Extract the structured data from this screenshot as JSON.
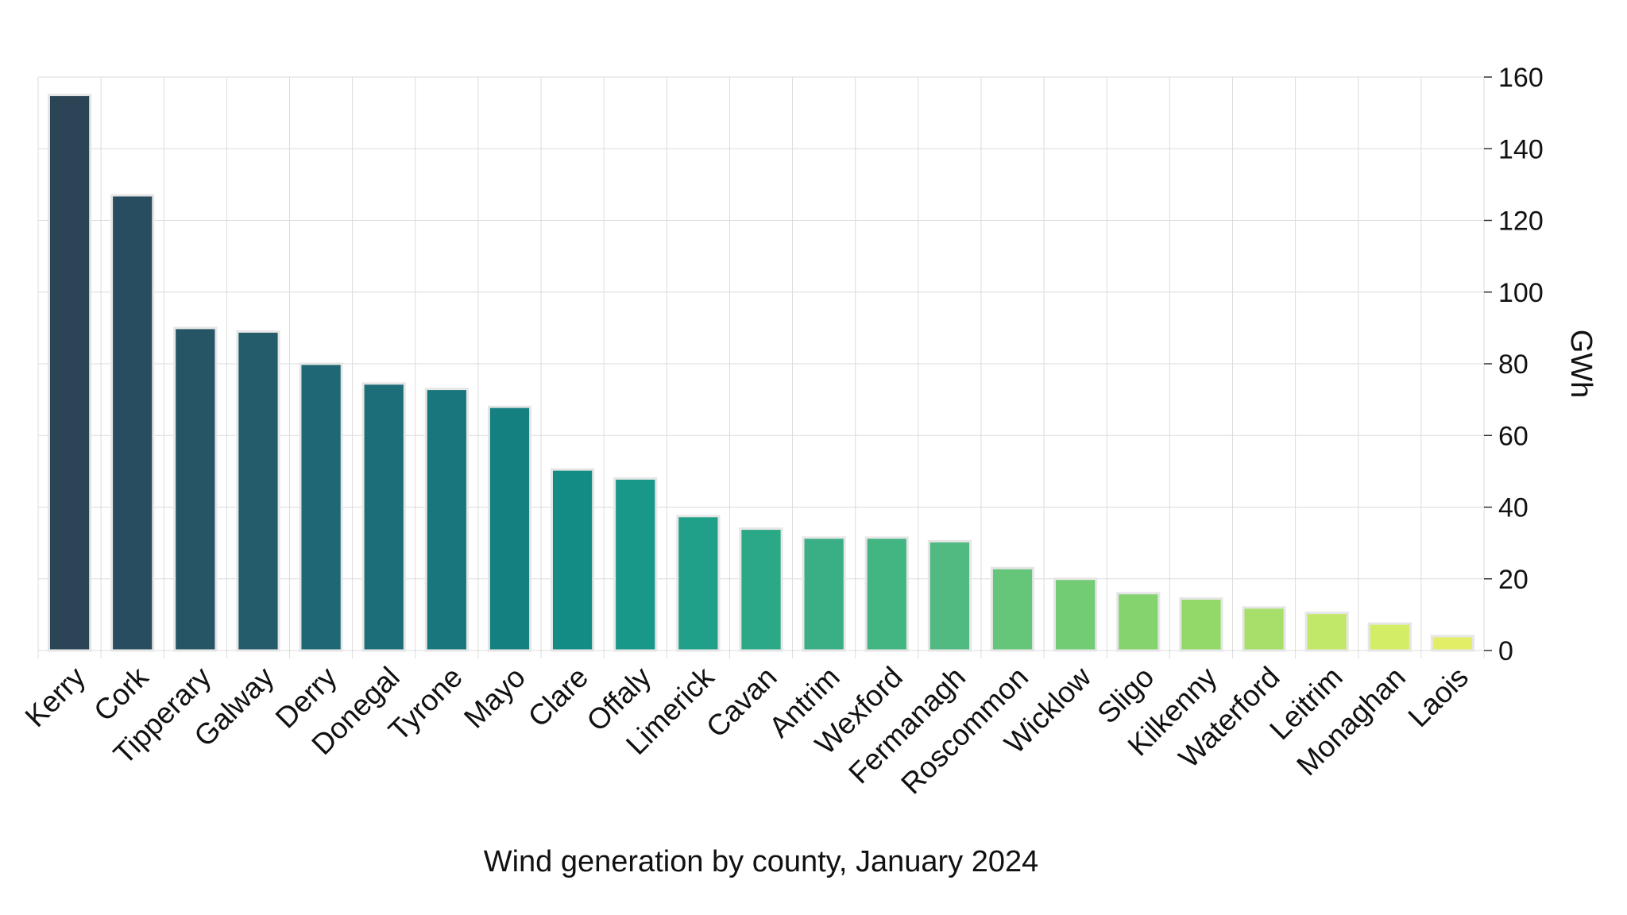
{
  "chart_data": {
    "type": "bar",
    "title": "",
    "xlabel": "Wind generation by county, January 2024",
    "ylabel": "GWh",
    "ylim": [
      0,
      160
    ],
    "yticks": [
      0,
      20,
      40,
      60,
      80,
      100,
      120,
      140,
      160
    ],
    "y_axis_position": "right",
    "grid": true,
    "legend": "none",
    "categories": [
      "Kerry",
      "Cork",
      "Tipperary",
      "Galway",
      "Derry",
      "Donegal",
      "Tyrone",
      "Mayo",
      "Clare",
      "Offaly",
      "Limerick",
      "Cavan",
      "Antrim",
      "Wexford",
      "Fermanagh",
      "Roscommon",
      "Wicklow",
      "Sligo",
      "Kilkenny",
      "Waterford",
      "Leitrim",
      "Monaghan",
      "Laois"
    ],
    "values": [
      155,
      127,
      90,
      89,
      80,
      74.5,
      73,
      68,
      50.5,
      48,
      37.5,
      34,
      31.5,
      31.5,
      30.5,
      23,
      20,
      16,
      14.5,
      12,
      10.5,
      7.5,
      4
    ],
    "colors": [
      "#2b4556",
      "#284d60",
      "#265566",
      "#245c6c",
      "#1f6775",
      "#1c6e79",
      "#19767d",
      "#158080",
      "#138c86",
      "#189888",
      "#20a088",
      "#2ba886",
      "#3aaf86",
      "#42b583",
      "#50ba80",
      "#65c67a",
      "#72cc74",
      "#84d36e",
      "#92d96a",
      "#a8df6b",
      "#c2e86a",
      "#d3ed67",
      "#e2ef66"
    ]
  }
}
